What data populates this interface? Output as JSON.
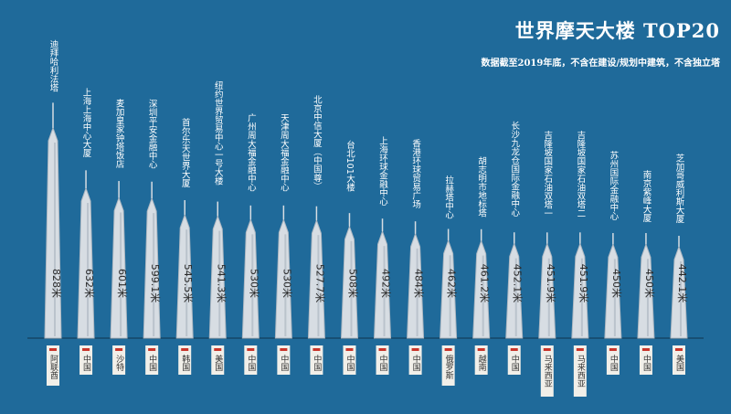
{
  "header": {
    "title": "世界摩天大楼 TOP20",
    "subtitle": "数据截至2019年底，不含在建设/规划中建筑，不含独立塔"
  },
  "colors": {
    "background": "#1f6a9a",
    "building": "#d7dde3",
    "building_shade": "#aeb8c2",
    "country_tag": "#f1efe9",
    "country_mark": "#c9352b",
    "label_text": "#ffffff"
  },
  "chart_data": {
    "type": "bar",
    "title": "世界摩天大楼 TOP20",
    "categories": [
      "迪拜哈利法塔",
      "上海上海中心大厦",
      "麦加皇家钟塔饭店",
      "深圳平安金融中心",
      "首尔乐天世界大厦",
      "纽约世界贸易中心一号大楼",
      "广州周大福金融中心",
      "天津周大福金融中心",
      "北京中信大厦（中国尊）",
      "台北101大楼",
      "上海环球金融中心",
      "香港环球贸易广场",
      "拉赫塔中心",
      "胡志明市地标塔",
      "长沙九龙仓国际金融中心",
      "吉隆坡国家石油双塔一",
      "吉隆坡国家石油双塔二",
      "苏州国际金融中心",
      "南京紫峰大厦",
      "芝加哥威利斯大厦"
    ],
    "values": [
      828,
      632,
      601,
      599.1,
      545.5,
      541.3,
      530,
      530,
      527.7,
      508,
      492,
      484,
      462,
      461.2,
      452.1,
      451.9,
      451.9,
      450,
      450,
      442.1
    ],
    "value_labels": [
      "828米",
      "632米",
      "601米",
      "599.1米",
      "545.5米",
      "541.3米",
      "530米",
      "530米",
      "527.7米",
      "508米",
      "492米",
      "484米",
      "462米",
      "461.2米",
      "452.1米",
      "451.9米",
      "451.9米",
      "450米",
      "450米",
      "442.1米"
    ],
    "countries": [
      "阿联酋",
      "中国",
      "沙特",
      "中国",
      "韩国",
      "美国",
      "中国",
      "中国",
      "中国",
      "中国",
      "中国",
      "中国",
      "俄罗斯",
      "越南",
      "中国",
      "马来西亚",
      "马来西亚",
      "中国",
      "中国",
      "美国"
    ],
    "ylim": [
      0,
      828
    ],
    "legend": "none",
    "grid": false
  }
}
